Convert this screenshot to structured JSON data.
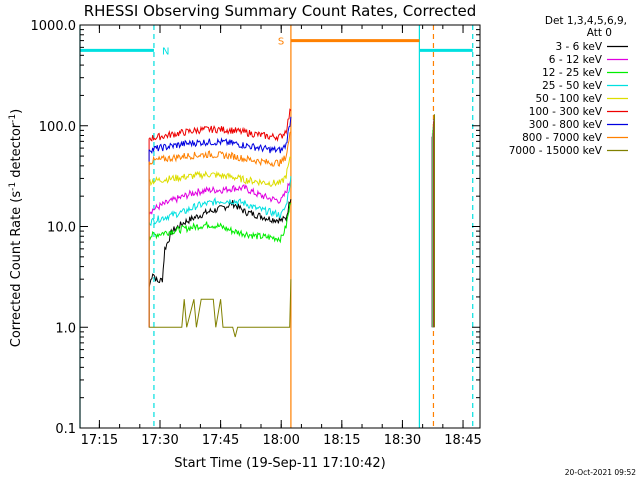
{
  "chart_data": {
    "type": "line",
    "title": "RHESSI Observing Summary Count Rates, Corrected",
    "xlabel": "Start Time (19-Sep-11 17:10:42)",
    "ylabel": "Corrected Count Rate (s",
    "ylabel_sup1": "-1",
    "ylabel_mid": " detector",
    "ylabel_sup2": "-1",
    "ylabel_end": ")",
    "ylog": true,
    "ylim": [
      0.1,
      1000
    ],
    "xlim": [
      17.17,
      18.82
    ],
    "x_ticks": [
      {
        "t": 17.25,
        "label": "17:15"
      },
      {
        "t": 17.5,
        "label": "17:30"
      },
      {
        "t": 17.75,
        "label": "17:45"
      },
      {
        "t": 18.0,
        "label": "18:00"
      },
      {
        "t": 18.25,
        "label": "18:15"
      },
      {
        "t": 18.5,
        "label": "18:30"
      },
      {
        "t": 18.75,
        "label": "18:45"
      }
    ],
    "y_ticks": [
      {
        "v": 1000,
        "label": "1000.0"
      },
      {
        "v": 100,
        "label": "100.0"
      },
      {
        "v": 10,
        "label": "10.0"
      },
      {
        "v": 1,
        "label": "1.0"
      },
      {
        "v": 0.1,
        "label": "0.1"
      }
    ],
    "legend_header": [
      "Det 1,3,4,5,6,9,",
      "Att 0"
    ],
    "legend_position": "right",
    "series": [
      {
        "name": "3 - 6 keV",
        "color": "#000000",
        "points": [
          [
            17.455,
            2.5
          ],
          [
            17.47,
            3.5
          ],
          [
            17.49,
            2.8
          ],
          [
            17.51,
            3.0
          ],
          [
            17.52,
            6.0
          ],
          [
            17.55,
            9.0
          ],
          [
            17.6,
            11.0
          ],
          [
            17.65,
            12.5
          ],
          [
            17.7,
            14.0
          ],
          [
            17.75,
            15.0
          ],
          [
            17.8,
            17.0
          ],
          [
            17.85,
            14.0
          ],
          [
            17.9,
            13.0
          ],
          [
            17.95,
            12.0
          ],
          [
            18.0,
            11.5
          ],
          [
            18.02,
            12.0
          ],
          [
            18.04,
            20.0
          ]
        ]
      },
      {
        "name": "6 - 12 keV",
        "color": "#e000e0",
        "points": [
          [
            17.455,
            14.0
          ],
          [
            17.5,
            16.0
          ],
          [
            17.55,
            18.0
          ],
          [
            17.6,
            20.0
          ],
          [
            17.65,
            22.0
          ],
          [
            17.7,
            23.0
          ],
          [
            17.75,
            23.0
          ],
          [
            17.8,
            24.0
          ],
          [
            17.85,
            24.0
          ],
          [
            17.9,
            21.0
          ],
          [
            17.95,
            19.0
          ],
          [
            18.0,
            18.0
          ],
          [
            18.02,
            22.0
          ],
          [
            18.04,
            30.0
          ]
        ]
      },
      {
        "name": "12 - 25 keV",
        "color": "#00ee00",
        "points": [
          [
            17.455,
            8.0
          ],
          [
            17.5,
            8.5
          ],
          [
            17.55,
            9.0
          ],
          [
            17.6,
            9.5
          ],
          [
            17.65,
            10.0
          ],
          [
            17.7,
            10.5
          ],
          [
            17.75,
            10.0
          ],
          [
            17.8,
            9.0
          ],
          [
            17.85,
            8.5
          ],
          [
            17.9,
            8.0
          ],
          [
            17.95,
            7.8
          ],
          [
            18.0,
            7.6
          ],
          [
            18.02,
            10.0
          ],
          [
            18.04,
            18.0
          ]
        ]
      },
      {
        "name": "25 - 50 keV",
        "color": "#00e0e0",
        "points": [
          [
            17.455,
            11.0
          ],
          [
            17.5,
            12.0
          ],
          [
            17.55,
            13.0
          ],
          [
            17.6,
            14.0
          ],
          [
            17.65,
            16.0
          ],
          [
            17.7,
            17.0
          ],
          [
            17.75,
            18.0
          ],
          [
            17.8,
            18.0
          ],
          [
            17.85,
            17.0
          ],
          [
            17.9,
            15.0
          ],
          [
            17.95,
            14.0
          ],
          [
            18.0,
            13.0
          ],
          [
            18.02,
            16.0
          ],
          [
            18.04,
            30.0
          ]
        ]
      },
      {
        "name": "50 - 100 keV",
        "color": "#dddd00",
        "points": [
          [
            17.455,
            28.0
          ],
          [
            17.5,
            29.0
          ],
          [
            17.55,
            30.0
          ],
          [
            17.6,
            31.0
          ],
          [
            17.65,
            32.0
          ],
          [
            17.7,
            33.0
          ],
          [
            17.75,
            32.0
          ],
          [
            17.8,
            31.0
          ],
          [
            17.85,
            29.0
          ],
          [
            17.9,
            28.0
          ],
          [
            17.95,
            27.0
          ],
          [
            18.0,
            27.0
          ],
          [
            18.02,
            32.0
          ],
          [
            18.04,
            50.0
          ]
        ]
      },
      {
        "name": "100 - 300 keV",
        "color": "#ee0000",
        "points": [
          [
            17.455,
            75.0
          ],
          [
            17.5,
            78.0
          ],
          [
            17.55,
            82.0
          ],
          [
            17.6,
            86.0
          ],
          [
            17.65,
            90.0
          ],
          [
            17.7,
            92.0
          ],
          [
            17.75,
            92.0
          ],
          [
            17.8,
            90.0
          ],
          [
            17.85,
            86.0
          ],
          [
            17.9,
            82.0
          ],
          [
            17.95,
            78.0
          ],
          [
            18.0,
            78.0
          ],
          [
            18.02,
            90.0
          ],
          [
            18.04,
            150.0
          ]
        ]
      },
      {
        "name": "300 - 800 keV",
        "color": "#0000e0",
        "points": [
          [
            17.455,
            58.0
          ],
          [
            17.5,
            60.0
          ],
          [
            17.55,
            63.0
          ],
          [
            17.6,
            66.0
          ],
          [
            17.65,
            68.0
          ],
          [
            17.7,
            69.0
          ],
          [
            17.75,
            69.0
          ],
          [
            17.8,
            67.0
          ],
          [
            17.85,
            64.0
          ],
          [
            17.9,
            61.0
          ],
          [
            17.95,
            58.0
          ],
          [
            18.0,
            57.0
          ],
          [
            18.02,
            65.0
          ],
          [
            18.04,
            120.0
          ]
        ]
      },
      {
        "name": "800 - 7000 keV",
        "color": "#ff8000",
        "points": [
          [
            17.455,
            44.0
          ],
          [
            17.5,
            46.0
          ],
          [
            17.55,
            48.0
          ],
          [
            17.6,
            50.0
          ],
          [
            17.65,
            51.0
          ],
          [
            17.7,
            52.0
          ],
          [
            17.75,
            51.0
          ],
          [
            17.8,
            50.0
          ],
          [
            17.85,
            47.0
          ],
          [
            17.9,
            45.0
          ],
          [
            17.95,
            43.0
          ],
          [
            18.0,
            43.0
          ],
          [
            18.02,
            50.0
          ],
          [
            18.04,
            90.0
          ]
        ]
      },
      {
        "name": "7000 - 15000 keV",
        "color": "#808000",
        "points": [
          [
            17.455,
            1.0
          ],
          [
            17.59,
            1.0
          ],
          [
            17.6,
            1.9
          ],
          [
            17.61,
            1.0
          ],
          [
            17.64,
            1.9
          ],
          [
            17.65,
            1.0
          ],
          [
            17.67,
            1.9
          ],
          [
            17.72,
            1.9
          ],
          [
            17.73,
            1.0
          ],
          [
            17.75,
            1.9
          ],
          [
            17.76,
            1.0
          ],
          [
            17.8,
            1.0
          ],
          [
            17.81,
            0.8
          ],
          [
            17.82,
            1.0
          ],
          [
            18.0,
            1.0
          ],
          [
            18.035,
            1.0
          ],
          [
            18.04,
            3.0
          ]
        ]
      }
    ],
    "right_segment": {
      "t_start": 18.623,
      "t_end": 18.635,
      "low": 1.0,
      "high": 130.0
    },
    "annotations": {
      "N_label": "N",
      "S_label": "S",
      "night_color": "#00e0e0",
      "saa_color": "#ff8000",
      "night_bars": [
        [
          17.17,
          17.475
        ],
        [
          18.57,
          18.79
        ]
      ],
      "night_level": 560,
      "saa_bar": [
        18.04,
        18.57
      ],
      "saa_level": 700,
      "cyan_solid_lines": [
        17.17,
        18.57
      ],
      "cyan_dashed_lines": [
        17.475,
        18.79
      ],
      "orange_solid_lines": [
        18.04
      ],
      "orange_dashed_lines": [
        18.628
      ]
    },
    "footer_date": "20-Oct-2021 09:52"
  }
}
